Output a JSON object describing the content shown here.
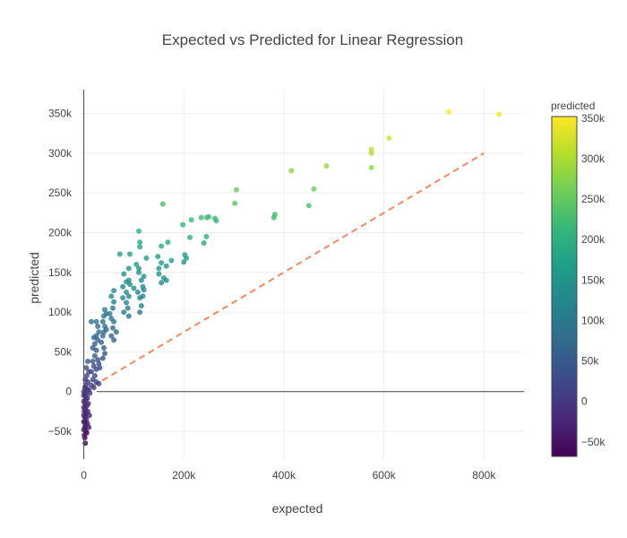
{
  "chart_data": {
    "type": "scatter",
    "title": "Expected vs Predicted for Linear Regression",
    "xlabel": "expected",
    "ylabel": "predicted",
    "xlim": [
      -10000,
      880000
    ],
    "ylim": [
      -85000,
      380000
    ],
    "x_ticks": [
      0,
      200000,
      400000,
      600000,
      800000
    ],
    "x_tick_labels": [
      "0",
      "200k",
      "400k",
      "600k",
      "800k"
    ],
    "y_ticks": [
      -50000,
      0,
      50000,
      100000,
      150000,
      200000,
      250000,
      300000,
      350000
    ],
    "y_tick_labels": [
      "−50k",
      "0",
      "50k",
      "100k",
      "150k",
      "200k",
      "250k",
      "300k",
      "350k"
    ],
    "grid": true,
    "colorbar": {
      "title": "predicted",
      "colorscale": "viridis",
      "range": [
        -68000,
        352000
      ],
      "ticks": [
        -50000,
        0,
        50000,
        100000,
        150000,
        200000,
        250000,
        300000,
        350000
      ],
      "tick_labels": [
        "−50k",
        "0",
        "50k",
        "100k",
        "150k",
        "200k",
        "250k",
        "300k",
        "350k"
      ]
    },
    "reference_line": {
      "x": [
        0,
        800000
      ],
      "y": [
        0,
        300000
      ],
      "color": "#f4895f",
      "dash": "dashed"
    },
    "series": [
      {
        "color_by": "predicted",
        "points": [
          [
            730000,
            352000
          ],
          [
            830000,
            349000
          ],
          [
            610000,
            319000
          ],
          [
            575000,
            305000
          ],
          [
            575000,
            300000
          ],
          [
            575000,
            282000
          ],
          [
            485000,
            284000
          ],
          [
            415000,
            278000
          ],
          [
            460000,
            255000
          ],
          [
            450000,
            234000
          ],
          [
            305000,
            254000
          ],
          [
            302000,
            237000
          ],
          [
            382000,
            223000
          ],
          [
            380000,
            219000
          ],
          [
            158000,
            236000
          ],
          [
            110000,
            202000
          ],
          [
            198000,
            210000
          ],
          [
            215000,
            216000
          ],
          [
            235000,
            219000
          ],
          [
            246000,
            219000
          ],
          [
            250000,
            220000
          ],
          [
            262000,
            218000
          ],
          [
            265000,
            215000
          ],
          [
            212000,
            194000
          ],
          [
            245000,
            195000
          ],
          [
            240000,
            187000
          ],
          [
            168000,
            188000
          ],
          [
            155000,
            183000
          ],
          [
            112000,
            188000
          ],
          [
            112000,
            182000
          ],
          [
            125000,
            168000
          ],
          [
            148000,
            170000
          ],
          [
            155000,
            162000
          ],
          [
            165000,
            158000
          ],
          [
            175000,
            165000
          ],
          [
            202000,
            172000
          ],
          [
            205000,
            168000
          ],
          [
            200000,
            163000
          ],
          [
            72000,
            173000
          ],
          [
            92000,
            173000
          ],
          [
            105000,
            160000
          ],
          [
            110000,
            155000
          ],
          [
            110000,
            150000
          ],
          [
            120000,
            145000
          ],
          [
            115000,
            140000
          ],
          [
            118000,
            132000
          ],
          [
            120000,
            128000
          ],
          [
            118000,
            120000
          ],
          [
            100000,
            130000
          ],
          [
            108000,
            125000
          ],
          [
            112000,
            118000
          ],
          [
            150000,
            155000
          ],
          [
            150000,
            148000
          ],
          [
            155000,
            137000
          ],
          [
            160000,
            143000
          ],
          [
            165000,
            140000
          ],
          [
            90000,
            155000
          ],
          [
            80000,
            148000
          ],
          [
            85000,
            138000
          ],
          [
            90000,
            140000
          ],
          [
            92000,
            135000
          ],
          [
            78000,
            132000
          ],
          [
            85000,
            125000
          ],
          [
            90000,
            120000
          ],
          [
            78000,
            118000
          ],
          [
            85000,
            112000
          ],
          [
            88000,
            105000
          ],
          [
            80000,
            100000
          ],
          [
            90000,
            95000
          ],
          [
            115000,
            108000
          ],
          [
            112000,
            100000
          ],
          [
            60000,
            127000
          ],
          [
            55000,
            120000
          ],
          [
            60000,
            113000
          ],
          [
            58000,
            105000
          ],
          [
            52000,
            98000
          ],
          [
            55000,
            92000
          ],
          [
            60000,
            88000
          ],
          [
            58000,
            80000
          ],
          [
            55000,
            70000
          ],
          [
            60000,
            65000
          ],
          [
            65000,
            75000
          ],
          [
            42000,
            103000
          ],
          [
            40000,
            95000
          ],
          [
            45000,
            98000
          ],
          [
            38000,
            88000
          ],
          [
            42000,
            82000
          ],
          [
            40000,
            75000
          ],
          [
            45000,
            78000
          ],
          [
            38000,
            70000
          ],
          [
            35000,
            62000
          ],
          [
            40000,
            55000
          ],
          [
            42000,
            48000
          ],
          [
            38000,
            42000
          ],
          [
            15000,
            88000
          ],
          [
            25000,
            88000
          ],
          [
            28000,
            82000
          ],
          [
            30000,
            75000
          ],
          [
            25000,
            70000
          ],
          [
            28000,
            65000
          ],
          [
            20000,
            68000
          ],
          [
            22000,
            60000
          ],
          [
            18000,
            55000
          ],
          [
            25000,
            52000
          ],
          [
            22000,
            45000
          ],
          [
            28000,
            40000
          ],
          [
            30000,
            35000
          ],
          [
            32000,
            30000
          ],
          [
            18000,
            38000
          ],
          [
            20000,
            32000
          ],
          [
            25000,
            28000
          ],
          [
            15000,
            25000
          ],
          [
            22000,
            20000
          ],
          [
            18000,
            15000
          ],
          [
            25000,
            12000
          ],
          [
            30000,
            10000
          ],
          [
            15000,
            8000
          ],
          [
            20000,
            5000
          ],
          [
            8000,
            38000
          ],
          [
            5000,
            30000
          ],
          [
            10000,
            25000
          ],
          [
            6000,
            20000
          ],
          [
            3000,
            15000
          ],
          [
            8000,
            12000
          ],
          [
            4000,
            8000
          ],
          [
            2000,
            5000
          ],
          [
            6000,
            3000
          ],
          [
            10000,
            2000
          ],
          [
            12000,
            -2000
          ],
          [
            3000,
            -5000
          ],
          [
            5000,
            -10000
          ],
          [
            2000,
            -15000
          ],
          [
            6000,
            -18000
          ],
          [
            3000,
            -22000
          ],
          [
            1000,
            -25000
          ],
          [
            4000,
            -28000
          ],
          [
            2000,
            -32000
          ],
          [
            5000,
            -35000
          ],
          [
            1000,
            -38000
          ],
          [
            3000,
            -42000
          ],
          [
            2000,
            -45000
          ],
          [
            0,
            -48000
          ],
          [
            4000,
            -50000
          ],
          [
            1000,
            -55000
          ],
          [
            2000,
            -58000
          ],
          [
            3000,
            -65000
          ],
          [
            6000,
            -52000
          ],
          [
            7000,
            -40000
          ],
          [
            0,
            -5000
          ],
          [
            0,
            -12000
          ],
          [
            0,
            -20000
          ],
          [
            0,
            -30000
          ],
          [
            0,
            -38000
          ],
          [
            8000,
            -25000
          ],
          [
            9000,
            -15000
          ],
          [
            7000,
            -8000
          ],
          [
            11000,
            -30000
          ],
          [
            10000,
            -45000
          ],
          [
            0,
            0
          ],
          [
            2000,
            -3000
          ],
          [
            5000,
            0
          ]
        ]
      }
    ]
  }
}
